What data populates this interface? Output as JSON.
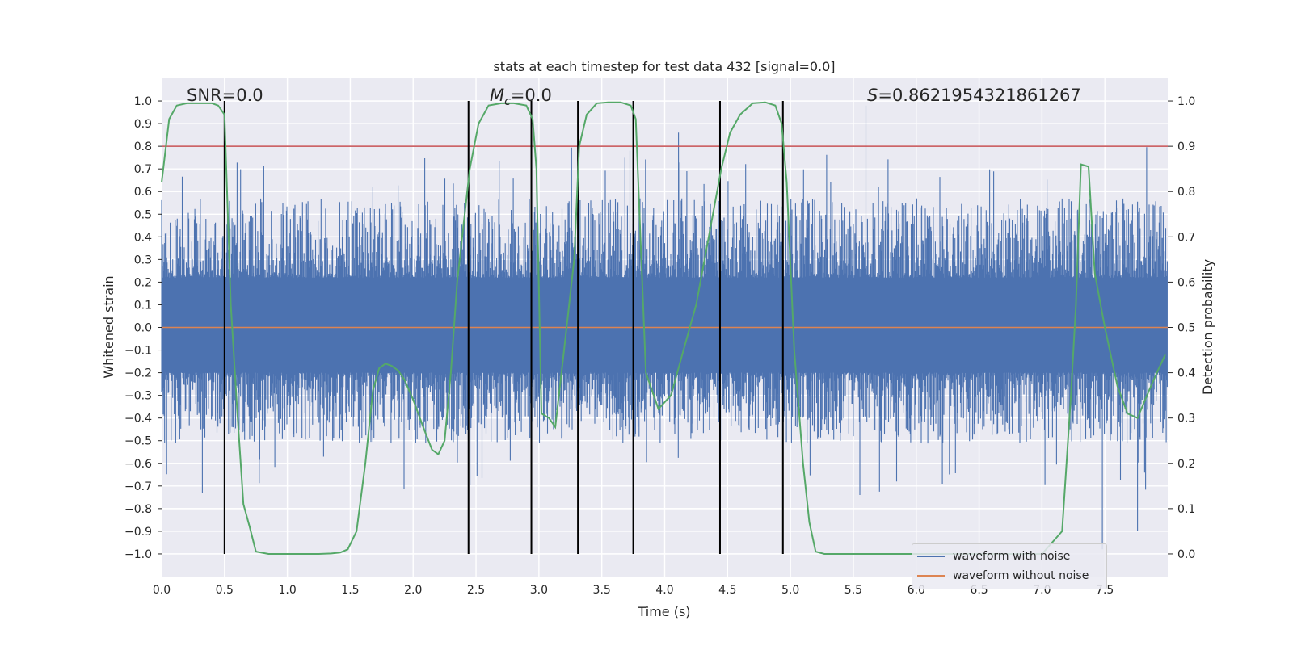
{
  "colors": {
    "background": "#eaeaf2",
    "grid": "#ffffff",
    "noise": "#4c72b0",
    "clean": "#dd8452",
    "prob": "#55a868",
    "threshold": "#c44e52",
    "boundary": "#000000"
  },
  "chart_data": {
    "type": "line",
    "title": "stats at each timestep for test data 432 [signal=0.0]",
    "xlabel": "Time (s)",
    "ylabel": "Whitened strain",
    "y2label": "Detection probability",
    "xlim": [
      0.0,
      8.0
    ],
    "ylim": [
      -1.1,
      1.1
    ],
    "y2lim": [
      -0.05,
      1.05
    ],
    "grid": true,
    "xticks": [
      0.0,
      0.5,
      1.0,
      1.5,
      2.0,
      2.5,
      3.0,
      3.5,
      4.0,
      4.5,
      5.0,
      5.5,
      6.0,
      6.5,
      7.0,
      7.5
    ],
    "xtick_labels": [
      "0.0",
      "0.5",
      "1.0",
      "1.5",
      "2.0",
      "2.5",
      "3.0",
      "3.5",
      "4.0",
      "4.5",
      "5.0",
      "5.5",
      "6.0",
      "6.5",
      "7.0",
      "7.5"
    ],
    "yticks": [
      1.0,
      0.9,
      0.8,
      0.7,
      0.6,
      0.5,
      0.4,
      0.3,
      0.2,
      0.1,
      0.0,
      -0.1,
      -0.2,
      -0.3,
      -0.4,
      -0.5,
      -0.6,
      -0.7,
      -0.8,
      -0.9,
      -1.0
    ],
    "ytick_labels": [
      "1.0",
      "0.9",
      "0.8",
      "0.7",
      "0.6",
      "0.5",
      "0.4",
      "0.3",
      "0.2",
      "0.1",
      "0.0",
      "−0.1",
      "−0.2",
      "−0.3",
      "−0.4",
      "−0.5",
      "−0.6",
      "−0.7",
      "−0.8",
      "−0.9",
      "−1.0"
    ],
    "y2ticks": [
      1.0,
      0.9,
      0.8,
      0.7,
      0.6,
      0.5,
      0.4,
      0.3,
      0.2,
      0.1,
      0.0
    ],
    "y2tick_labels": [
      "1.0",
      "0.9",
      "0.8",
      "0.7",
      "0.6",
      "0.5",
      "0.4",
      "0.3",
      "0.2",
      "0.1",
      "0.0"
    ],
    "annotations": {
      "snr": "SNR=0.0",
      "mc_symbol": "M",
      "mc_subscript": "c",
      "mc_value": "=0.0",
      "s_symbol": "S",
      "s_value": "=0.8621954321861267"
    },
    "threshold_right_axis": 0.9,
    "boundaries": [
      0.5,
      2.44,
      2.94,
      3.31,
      3.75,
      4.44,
      4.94
    ],
    "noise_envelope": {
      "upper_typical": 0.5,
      "lower_typical": -0.45,
      "max": 0.98,
      "min": -0.98,
      "peak_times": [
        5.6,
        4.11,
        7.48,
        7.76
      ]
    },
    "series": [
      {
        "name": "waveform with noise",
        "axis": "left"
      },
      {
        "name": "waveform without noise",
        "axis": "left",
        "constant": 0.0
      },
      {
        "name": "detection probability",
        "axis": "right",
        "x": [
          0.0,
          0.06,
          0.12,
          0.2,
          0.3,
          0.4,
          0.45,
          0.5,
          0.55,
          0.6,
          0.65,
          0.7,
          0.75,
          0.85,
          1.0,
          1.25,
          1.35,
          1.42,
          1.48,
          1.55,
          1.62,
          1.68,
          1.73,
          1.78,
          1.83,
          1.88,
          1.93,
          2.0,
          2.08,
          2.15,
          2.2,
          2.25,
          2.3,
          2.35,
          2.45,
          2.52,
          2.6,
          2.7,
          2.8,
          2.9,
          2.95,
          2.98,
          3.02,
          3.08,
          3.13,
          3.2,
          3.28,
          3.32,
          3.38,
          3.46,
          3.55,
          3.65,
          3.73,
          3.77,
          3.85,
          3.95,
          4.05,
          4.15,
          4.25,
          4.35,
          4.45,
          4.52,
          4.6,
          4.7,
          4.8,
          4.88,
          4.93,
          4.97,
          5.03,
          5.1,
          5.15,
          5.2,
          5.27,
          5.4,
          6.0,
          6.5,
          7.0,
          7.16,
          7.23,
          7.27,
          7.31,
          7.37,
          7.42,
          7.5,
          7.6,
          7.68,
          7.76,
          7.85,
          7.93,
          7.98
        ],
        "y": [
          0.82,
          0.96,
          0.99,
          0.995,
          0.995,
          0.995,
          0.99,
          0.97,
          0.55,
          0.32,
          0.11,
          0.06,
          0.005,
          0.0,
          0.0,
          0.0,
          0.001,
          0.003,
          0.01,
          0.05,
          0.2,
          0.36,
          0.41,
          0.42,
          0.415,
          0.405,
          0.385,
          0.34,
          0.28,
          0.23,
          0.22,
          0.25,
          0.4,
          0.6,
          0.85,
          0.95,
          0.99,
          0.995,
          0.995,
          0.99,
          0.96,
          0.85,
          0.31,
          0.3,
          0.28,
          0.45,
          0.65,
          0.9,
          0.97,
          0.995,
          0.997,
          0.997,
          0.99,
          0.96,
          0.4,
          0.32,
          0.35,
          0.45,
          0.55,
          0.7,
          0.85,
          0.93,
          0.97,
          0.995,
          0.997,
          0.99,
          0.95,
          0.82,
          0.45,
          0.2,
          0.07,
          0.005,
          0.0,
          0.0,
          0.0,
          0.0,
          0.0,
          0.05,
          0.35,
          0.55,
          0.86,
          0.855,
          0.62,
          0.5,
          0.37,
          0.31,
          0.3,
          0.36,
          0.41,
          0.44
        ]
      }
    ]
  }
}
